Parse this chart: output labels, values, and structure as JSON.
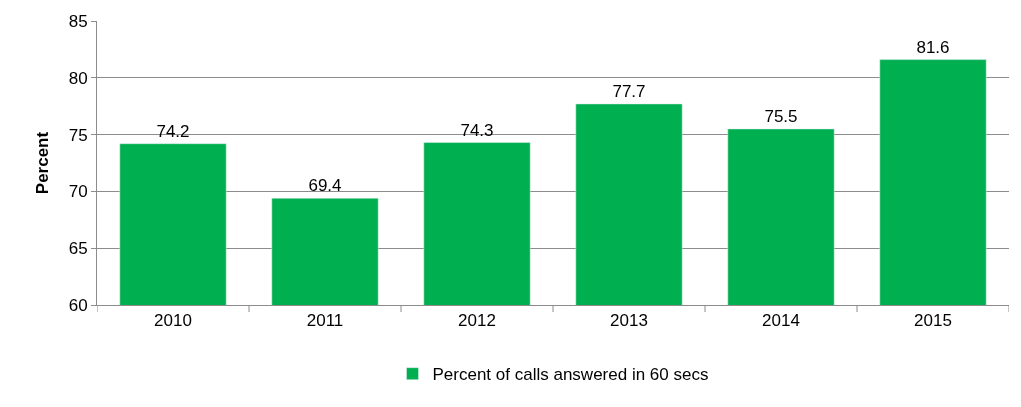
{
  "chart_data": {
    "type": "bar",
    "ylabel": "Percent",
    "categories": [
      "2010",
      "2011",
      "2012",
      "2013",
      "2014",
      "2015"
    ],
    "series": [
      {
        "name": "Percent of calls answered in 60 secs",
        "color": "#00b050",
        "values": [
          74.2,
          69.4,
          74.3,
          77.7,
          75.5,
          81.6
        ]
      }
    ],
    "ylim": [
      60,
      85
    ],
    "yticks": [
      60,
      65,
      70,
      75,
      80,
      85
    ],
    "grid": "y",
    "legend": "bottom",
    "data_labels": true
  }
}
